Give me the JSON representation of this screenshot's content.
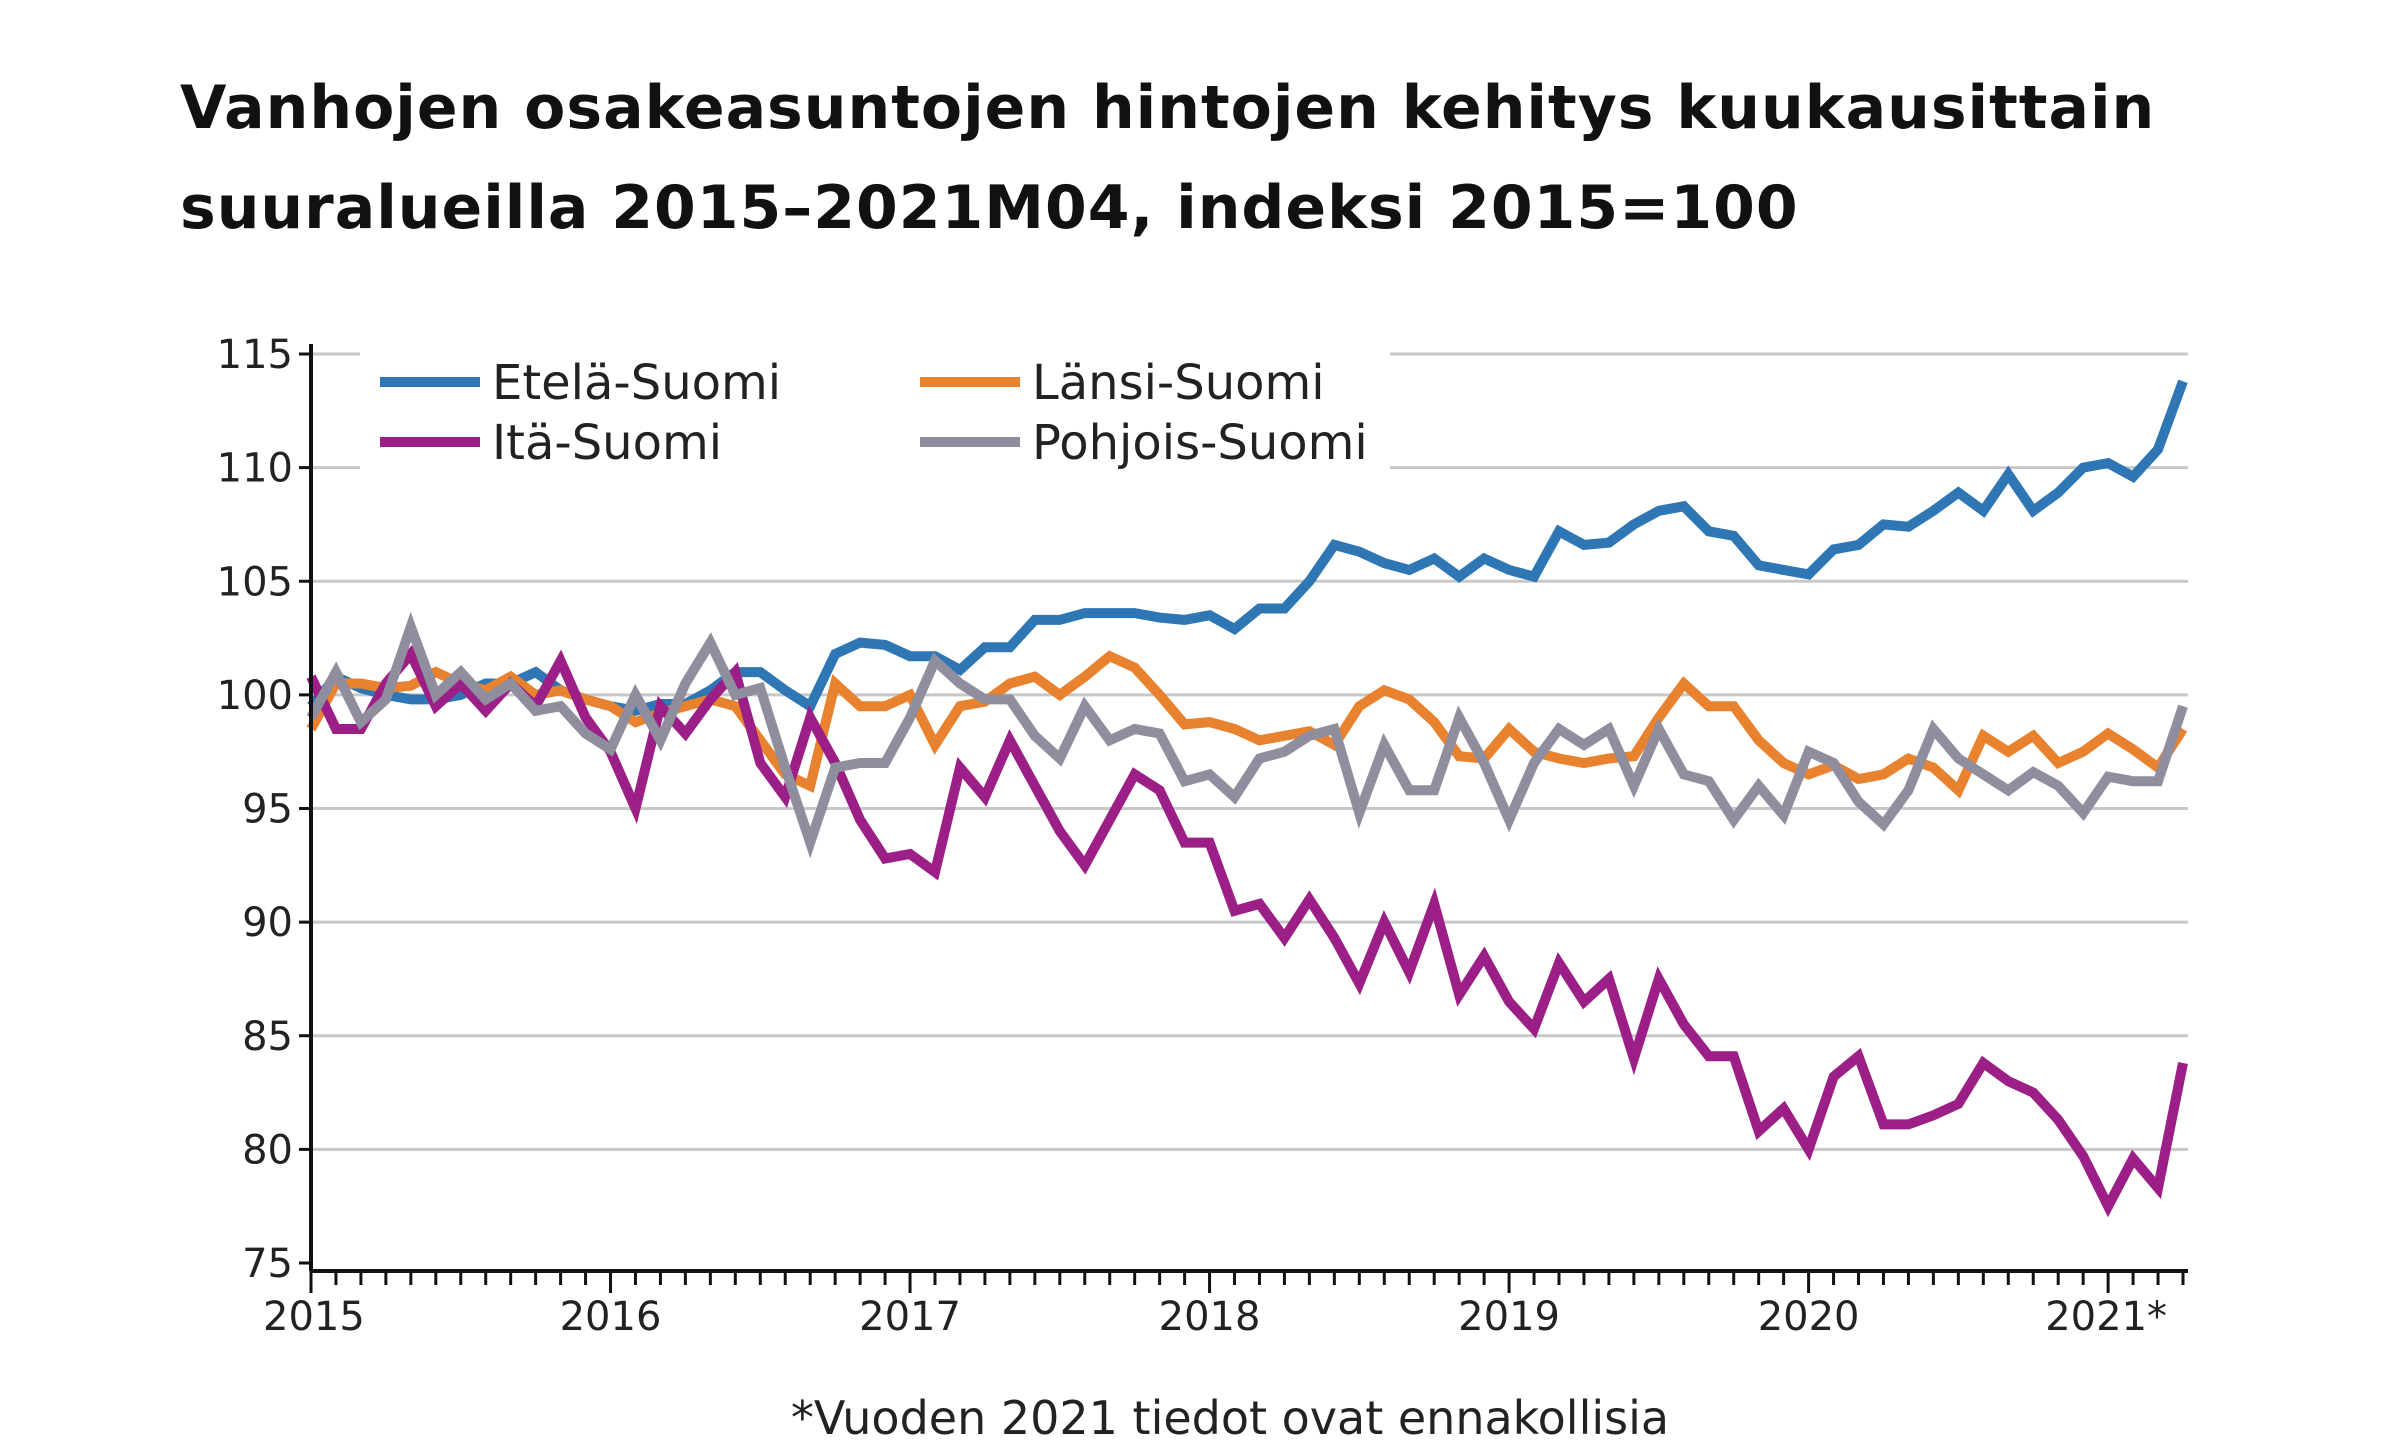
{
  "chart_data": {
    "type": "line",
    "title": "Vanhojen osakeasuntojen hintojen kehitys kuukausittain suuralueilla 2015–2021M04, indeksi 2015=100",
    "xlabel": "",
    "ylabel": "",
    "x_start": "2015-01",
    "x_end": "2021-04",
    "x_tick_labels": [
      "2015",
      "2016",
      "2017",
      "2018",
      "2019",
      "2020",
      "2021*"
    ],
    "ylim": [
      75,
      115
    ],
    "y_ticks": [
      75,
      80,
      85,
      90,
      95,
      100,
      105,
      110,
      115
    ],
    "grid": true,
    "legend_position": "top-left",
    "footnote": "*Vuoden 2021 tiedot ovat ennakollisia",
    "series": [
      {
        "name": "Etelä-Suomi",
        "color": "#2f77b4",
        "values": [
          99.5,
          100.8,
          100.3,
          100,
          99.8,
          99.8,
          100,
          100.5,
          100.5,
          101,
          100.2,
          99.8,
          99.5,
          99.3,
          99.6,
          99.6,
          100.2,
          101,
          101,
          100.2,
          99.5,
          101.8,
          102.3,
          102.2,
          101.7,
          101.7,
          101.1,
          102.1,
          102.1,
          103.3,
          103.3,
          103.6,
          103.6,
          103.6,
          103.4,
          103.3,
          103.5,
          102.9,
          103.8,
          103.8,
          105,
          106.6,
          106.3,
          105.8,
          105.5,
          106,
          105.2,
          106,
          105.5,
          105.2,
          107.2,
          106.6,
          106.7,
          107.5,
          108.1,
          108.3,
          107.2,
          107,
          105.7,
          105.5,
          105.3,
          106.4,
          106.6,
          107.5,
          107.4,
          108.1,
          108.9,
          108.1,
          109.7,
          108.1,
          108.9,
          110,
          110.2,
          109.6,
          110.8,
          113.8
        ]
      },
      {
        "name": "Länsi-Suomi",
        "color": "#e8822e",
        "values": [
          98.5,
          100.5,
          100.5,
          100.3,
          100.4,
          101,
          100.5,
          100.2,
          100.8,
          100,
          100.2,
          99.8,
          99.5,
          98.8,
          99.2,
          99.5,
          99.8,
          99.5,
          98,
          96.5,
          96,
          100.5,
          99.5,
          99.5,
          100,
          97.8,
          99.5,
          99.7,
          100.5,
          100.8,
          100,
          100.8,
          101.7,
          101.2,
          100,
          98.7,
          98.8,
          98.5,
          98,
          98.2,
          98.4,
          97.8,
          99.5,
          100.2,
          99.8,
          98.8,
          97.3,
          97.2,
          98.5,
          97.5,
          97.2,
          97,
          97.2,
          97.3,
          99,
          100.5,
          99.5,
          99.5,
          98,
          97,
          96.5,
          96.9,
          96.3,
          96.5,
          97.2,
          96.8,
          95.8,
          98.2,
          97.5,
          98.2,
          97,
          97.5,
          98.3,
          97.6,
          96.8,
          98.5
        ]
      },
      {
        "name": "Itä-Suomi",
        "color": "#9b1f86",
        "values": [
          100.8,
          98.5,
          98.5,
          100.5,
          101.8,
          99.5,
          100.5,
          99.3,
          100.5,
          99.5,
          101.5,
          99,
          97.5,
          95,
          99.5,
          98.3,
          99.8,
          101,
          97,
          95.5,
          99,
          97,
          94.5,
          92.8,
          93,
          92.2,
          96.8,
          95.5,
          98,
          96,
          94,
          92.5,
          94.5,
          96.5,
          95.8,
          93.5,
          93.5,
          90.5,
          90.8,
          89.3,
          91,
          89.3,
          87.3,
          90,
          87.8,
          90.8,
          86.8,
          88.5,
          86.5,
          85.3,
          88.2,
          86.5,
          87.5,
          84,
          87.5,
          85.5,
          84.1,
          84.1,
          80.8,
          81.8,
          80,
          83.2,
          84.1,
          81.1,
          81.1,
          81.5,
          82,
          83.8,
          83,
          82.5,
          81.3,
          79.7,
          77.5,
          79.6,
          78.3,
          83.8
        ]
      },
      {
        "name": "Pohjois-Suomi",
        "color": "#8e8e9e",
        "values": [
          99,
          101,
          98.8,
          99.8,
          103,
          100,
          101,
          99.8,
          100.5,
          99.3,
          99.5,
          98.3,
          97.6,
          100,
          98,
          100.5,
          102.3,
          100,
          100.3,
          96.8,
          93.5,
          96.8,
          97,
          97,
          99,
          101.5,
          100.5,
          99.8,
          99.8,
          98.2,
          97.2,
          99.5,
          98,
          98.5,
          98.3,
          96.2,
          96.5,
          95.5,
          97.2,
          97.5,
          98.2,
          98.5,
          94.8,
          97.8,
          95.8,
          95.8,
          99,
          97,
          94.5,
          97,
          98.5,
          97.8,
          98.5,
          96,
          98.5,
          96.5,
          96.2,
          94.5,
          96,
          94.7,
          97.5,
          97,
          95.3,
          94.3,
          95.8,
          98.5,
          97.2,
          96.5,
          95.8,
          96.6,
          96,
          94.8,
          96.4,
          96.2,
          96.2,
          99.5
        ]
      }
    ]
  }
}
